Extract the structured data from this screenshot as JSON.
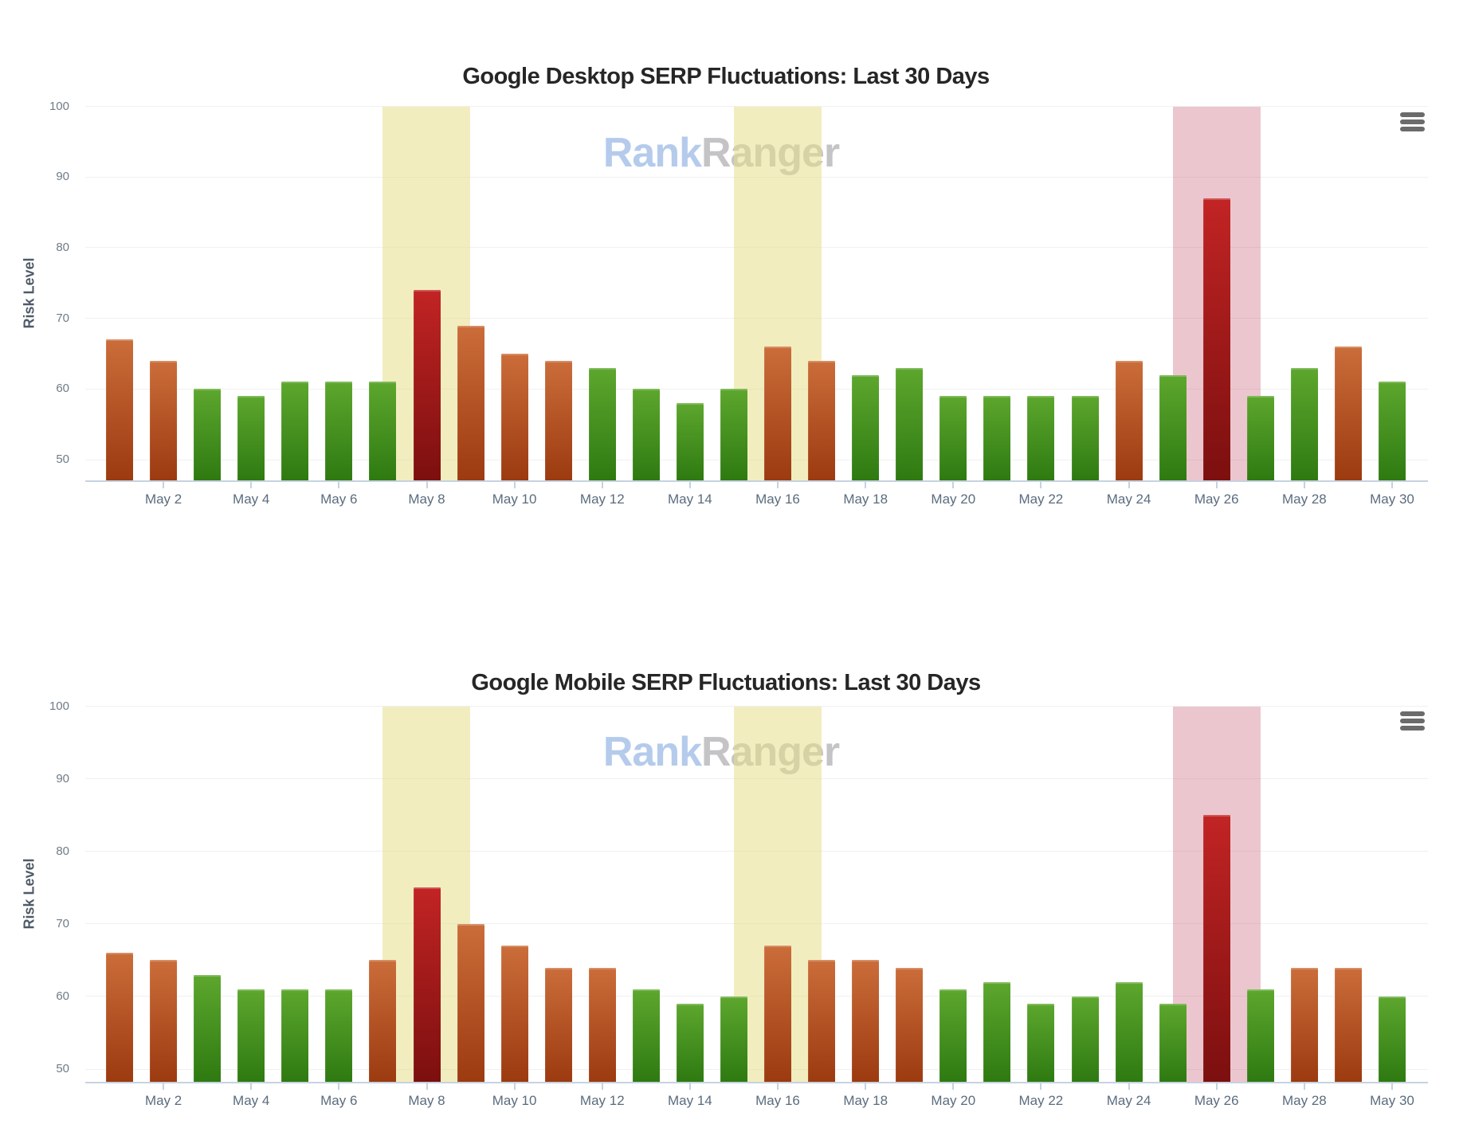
{
  "page": {
    "background": "#ffffff",
    "brand_watermark": "RankRanger"
  },
  "palette": {
    "green": {
      "top": "#5da72e",
      "bottom": "#2e7a11"
    },
    "orange": {
      "top": "#cb6d3a",
      "bottom": "#9c3a10"
    },
    "red": {
      "top": "#c22424",
      "bottom": "#7c0f0f"
    },
    "yellow_band": "rgba(231,222,138,0.55)",
    "pink_band": "rgba(200,92,115,0.35)",
    "watermark_rank": "#b5cbec",
    "watermark_ranger": "#c4c4c6",
    "axis_line": "#c5d2e0",
    "gridline": "#f0f0f1",
    "title_color": "#262626"
  },
  "charts": [
    {
      "id": "desktop",
      "title": "Google Desktop SERP Fluctuations: Last 30 Days",
      "y_axis_title": "Risk Level",
      "watermark": {
        "rank": "Rank",
        "ranger": "Ranger"
      },
      "menu_icon": "hamburger-menu-icon",
      "y_ticks": [
        50,
        60,
        70,
        80,
        90,
        100
      ],
      "x_tick_labels": [
        "May 2",
        "May 4",
        "May 6",
        "May 8",
        "May 10",
        "May 12",
        "May 14",
        "May 16",
        "May 18",
        "May 20",
        "May 22",
        "May 24",
        "May 26",
        "May 28",
        "May 30"
      ],
      "chart_data": {
        "type": "bar",
        "title": "Google Desktop SERP Fluctuations: Last 30 Days",
        "xlabel": "",
        "ylabel": "Risk Level",
        "ylim": [
          50,
          100
        ],
        "grid": true,
        "legend": false,
        "categories": [
          "May 1",
          "May 2",
          "May 3",
          "May 4",
          "May 5",
          "May 6",
          "May 7",
          "May 8",
          "May 9",
          "May 10",
          "May 11",
          "May 12",
          "May 13",
          "May 14",
          "May 15",
          "May 16",
          "May 17",
          "May 18",
          "May 19",
          "May 20",
          "May 21",
          "May 22",
          "May 23",
          "May 24",
          "May 25",
          "May 26",
          "May 27",
          "May 28",
          "May 29",
          "May 30"
        ],
        "values": [
          67,
          64,
          60,
          59,
          61,
          61,
          61,
          74,
          69,
          65,
          64,
          63,
          60,
          58,
          60,
          66,
          64,
          62,
          63,
          59,
          59,
          59,
          59,
          64,
          62,
          87,
          59,
          63,
          66,
          61
        ],
        "color_rules": {
          "green_max": 63,
          "orange_max": 72,
          "red_min": 73
        },
        "highlight_bands": [
          {
            "label": "May 8",
            "day": 8,
            "color_name": "yellow"
          },
          {
            "label": "May 16",
            "day": 16,
            "color_name": "yellow"
          },
          {
            "label": "May 26",
            "day": 26,
            "color_name": "pink"
          }
        ]
      }
    },
    {
      "id": "mobile",
      "title": "Google Mobile SERP Fluctuations: Last 30 Days",
      "y_axis_title": "Risk Level",
      "watermark": {
        "rank": "Rank",
        "ranger": "Ranger"
      },
      "menu_icon": "hamburger-menu-icon",
      "y_ticks": [
        50,
        60,
        70,
        80,
        90,
        100
      ],
      "x_tick_labels": [
        "May 2",
        "May 4",
        "May 6",
        "May 8",
        "May 10",
        "May 12",
        "May 14",
        "May 16",
        "May 18",
        "May 20",
        "May 22",
        "May 24",
        "May 26",
        "May 28",
        "May 30"
      ],
      "chart_data": {
        "type": "bar",
        "title": "Google Mobile SERP Fluctuations: Last 30 Days",
        "xlabel": "",
        "ylabel": "Risk Level",
        "ylim": [
          50,
          100
        ],
        "grid": true,
        "legend": false,
        "categories": [
          "May 1",
          "May 2",
          "May 3",
          "May 4",
          "May 5",
          "May 6",
          "May 7",
          "May 8",
          "May 9",
          "May 10",
          "May 11",
          "May 12",
          "May 13",
          "May 14",
          "May 15",
          "May 16",
          "May 17",
          "May 18",
          "May 19",
          "May 20",
          "May 21",
          "May 22",
          "May 23",
          "May 24",
          "May 25",
          "May 26",
          "May 27",
          "May 28",
          "May 29",
          "May 30"
        ],
        "values": [
          66,
          65,
          63,
          61,
          61,
          61,
          65,
          75,
          70,
          67,
          64,
          64,
          61,
          59,
          60,
          67,
          65,
          65,
          64,
          61,
          62,
          59,
          60,
          62,
          59,
          85,
          61,
          64,
          64,
          60
        ],
        "color_rules": {
          "green_max": 63,
          "orange_max": 72,
          "red_min": 73
        },
        "highlight_bands": [
          {
            "label": "May 8",
            "day": 8,
            "color_name": "yellow"
          },
          {
            "label": "May 16",
            "day": 16,
            "color_name": "yellow"
          },
          {
            "label": "May 26",
            "day": 26,
            "color_name": "pink"
          }
        ]
      }
    }
  ]
}
